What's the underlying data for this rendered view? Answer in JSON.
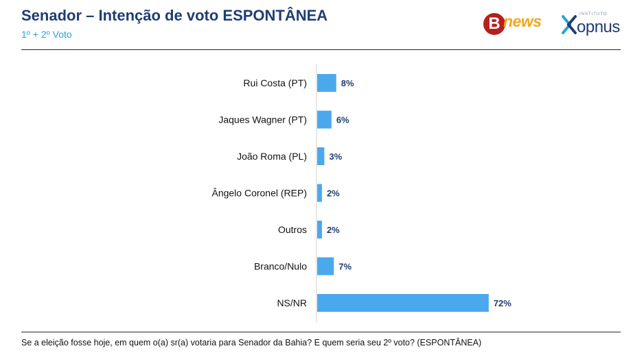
{
  "header": {
    "title": "Senador – Intenção de voto ESPONTÂNEA",
    "subtitle": "1º + 2º Voto"
  },
  "logos": {
    "bnews": {
      "badge": "B",
      "word": "news"
    },
    "opnus": {
      "small": "INSTITUTO",
      "word": "opnus"
    }
  },
  "footer": {
    "note": "Se a eleição fosse hoje, em quem o(a) sr(a) votaria para Senador da Bahia? E quem seria seu 2º voto? (ESPONTÂNEA)"
  },
  "colors": {
    "bar": "#4aa9ec",
    "title": "#1f3d73",
    "subtitle": "#29a0d8",
    "value_label": "#1f3d73",
    "bnews_red": "#b5201f",
    "bnews_orange": "#f2a81d"
  },
  "chart_data": {
    "type": "bar",
    "orientation": "horizontal",
    "categories": [
      "Rui Costa (PT)",
      "Jaques Wagner (PT)",
      "João Roma (PL)",
      "Ângelo Coronel (REP)",
      "Outros",
      "Branco/Nulo",
      "NS/NR"
    ],
    "values": [
      8,
      6,
      3,
      2,
      2,
      7,
      72
    ],
    "value_labels": [
      "8%",
      "6%",
      "3%",
      "2%",
      "2%",
      "7%",
      "72%"
    ],
    "xlim": [
      0,
      100
    ],
    "grid": false,
    "legend": "none"
  }
}
